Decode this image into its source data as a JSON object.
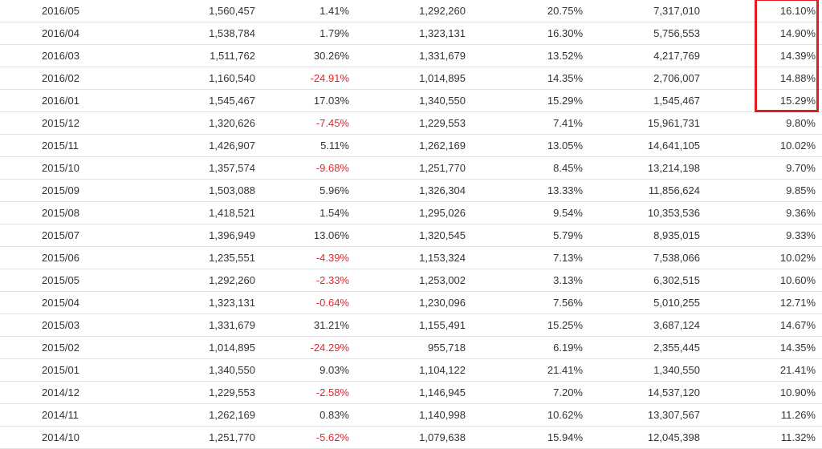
{
  "colors": {
    "text": "#333333",
    "negative": "#e8242b",
    "highlight": "#e01b22",
    "row_border": "#e3e3e3"
  },
  "rows": [
    {
      "month": "2016/05",
      "revenue": "1,560,457",
      "mom": "1.41%",
      "prev_year": "1,292,260",
      "yoy": "20.75%",
      "cumulative": "7,317,010",
      "cum_yoy": "16.10%",
      "mom_negative": false
    },
    {
      "month": "2016/04",
      "revenue": "1,538,784",
      "mom": "1.79%",
      "prev_year": "1,323,131",
      "yoy": "16.30%",
      "cumulative": "5,756,553",
      "cum_yoy": "14.90%",
      "mom_negative": false
    },
    {
      "month": "2016/03",
      "revenue": "1,511,762",
      "mom": "30.26%",
      "prev_year": "1,331,679",
      "yoy": "13.52%",
      "cumulative": "4,217,769",
      "cum_yoy": "14.39%",
      "mom_negative": false
    },
    {
      "month": "2016/02",
      "revenue": "1,160,540",
      "mom": "-24.91%",
      "prev_year": "1,014,895",
      "yoy": "14.35%",
      "cumulative": "2,706,007",
      "cum_yoy": "14.88%",
      "mom_negative": true
    },
    {
      "month": "2016/01",
      "revenue": "1,545,467",
      "mom": "17.03%",
      "prev_year": "1,340,550",
      "yoy": "15.29%",
      "cumulative": "1,545,467",
      "cum_yoy": "15.29%",
      "mom_negative": false
    },
    {
      "month": "2015/12",
      "revenue": "1,320,626",
      "mom": "-7.45%",
      "prev_year": "1,229,553",
      "yoy": "7.41%",
      "cumulative": "15,961,731",
      "cum_yoy": "9.80%",
      "mom_negative": true
    },
    {
      "month": "2015/11",
      "revenue": "1,426,907",
      "mom": "5.11%",
      "prev_year": "1,262,169",
      "yoy": "13.05%",
      "cumulative": "14,641,105",
      "cum_yoy": "10.02%",
      "mom_negative": false
    },
    {
      "month": "2015/10",
      "revenue": "1,357,574",
      "mom": "-9.68%",
      "prev_year": "1,251,770",
      "yoy": "8.45%",
      "cumulative": "13,214,198",
      "cum_yoy": "9.70%",
      "mom_negative": true
    },
    {
      "month": "2015/09",
      "revenue": "1,503,088",
      "mom": "5.96%",
      "prev_year": "1,326,304",
      "yoy": "13.33%",
      "cumulative": "11,856,624",
      "cum_yoy": "9.85%",
      "mom_negative": false
    },
    {
      "month": "2015/08",
      "revenue": "1,418,521",
      "mom": "1.54%",
      "prev_year": "1,295,026",
      "yoy": "9.54%",
      "cumulative": "10,353,536",
      "cum_yoy": "9.36%",
      "mom_negative": false
    },
    {
      "month": "2015/07",
      "revenue": "1,396,949",
      "mom": "13.06%",
      "prev_year": "1,320,545",
      "yoy": "5.79%",
      "cumulative": "8,935,015",
      "cum_yoy": "9.33%",
      "mom_negative": false
    },
    {
      "month": "2015/06",
      "revenue": "1,235,551",
      "mom": "-4.39%",
      "prev_year": "1,153,324",
      "yoy": "7.13%",
      "cumulative": "7,538,066",
      "cum_yoy": "10.02%",
      "mom_negative": true
    },
    {
      "month": "2015/05",
      "revenue": "1,292,260",
      "mom": "-2.33%",
      "prev_year": "1,253,002",
      "yoy": "3.13%",
      "cumulative": "6,302,515",
      "cum_yoy": "10.60%",
      "mom_negative": true
    },
    {
      "month": "2015/04",
      "revenue": "1,323,131",
      "mom": "-0.64%",
      "prev_year": "1,230,096",
      "yoy": "7.56%",
      "cumulative": "5,010,255",
      "cum_yoy": "12.71%",
      "mom_negative": true
    },
    {
      "month": "2015/03",
      "revenue": "1,331,679",
      "mom": "31.21%",
      "prev_year": "1,155,491",
      "yoy": "15.25%",
      "cumulative": "3,687,124",
      "cum_yoy": "14.67%",
      "mom_negative": false
    },
    {
      "month": "2015/02",
      "revenue": "1,014,895",
      "mom": "-24.29%",
      "prev_year": "955,718",
      "yoy": "6.19%",
      "cumulative": "2,355,445",
      "cum_yoy": "14.35%",
      "mom_negative": true
    },
    {
      "month": "2015/01",
      "revenue": "1,340,550",
      "mom": "9.03%",
      "prev_year": "1,104,122",
      "yoy": "21.41%",
      "cumulative": "1,340,550",
      "cum_yoy": "21.41%",
      "mom_negative": false
    },
    {
      "month": "2014/12",
      "revenue": "1,229,553",
      "mom": "-2.58%",
      "prev_year": "1,146,945",
      "yoy": "7.20%",
      "cumulative": "14,537,120",
      "cum_yoy": "10.90%",
      "mom_negative": true
    },
    {
      "month": "2014/11",
      "revenue": "1,262,169",
      "mom": "0.83%",
      "prev_year": "1,140,998",
      "yoy": "10.62%",
      "cumulative": "13,307,567",
      "cum_yoy": "11.26%",
      "mom_negative": false
    },
    {
      "month": "2014/10",
      "revenue": "1,251,770",
      "mom": "-5.62%",
      "prev_year": "1,079,638",
      "yoy": "15.94%",
      "cumulative": "12,045,398",
      "cum_yoy": "11.32%",
      "mom_negative": true
    }
  ]
}
